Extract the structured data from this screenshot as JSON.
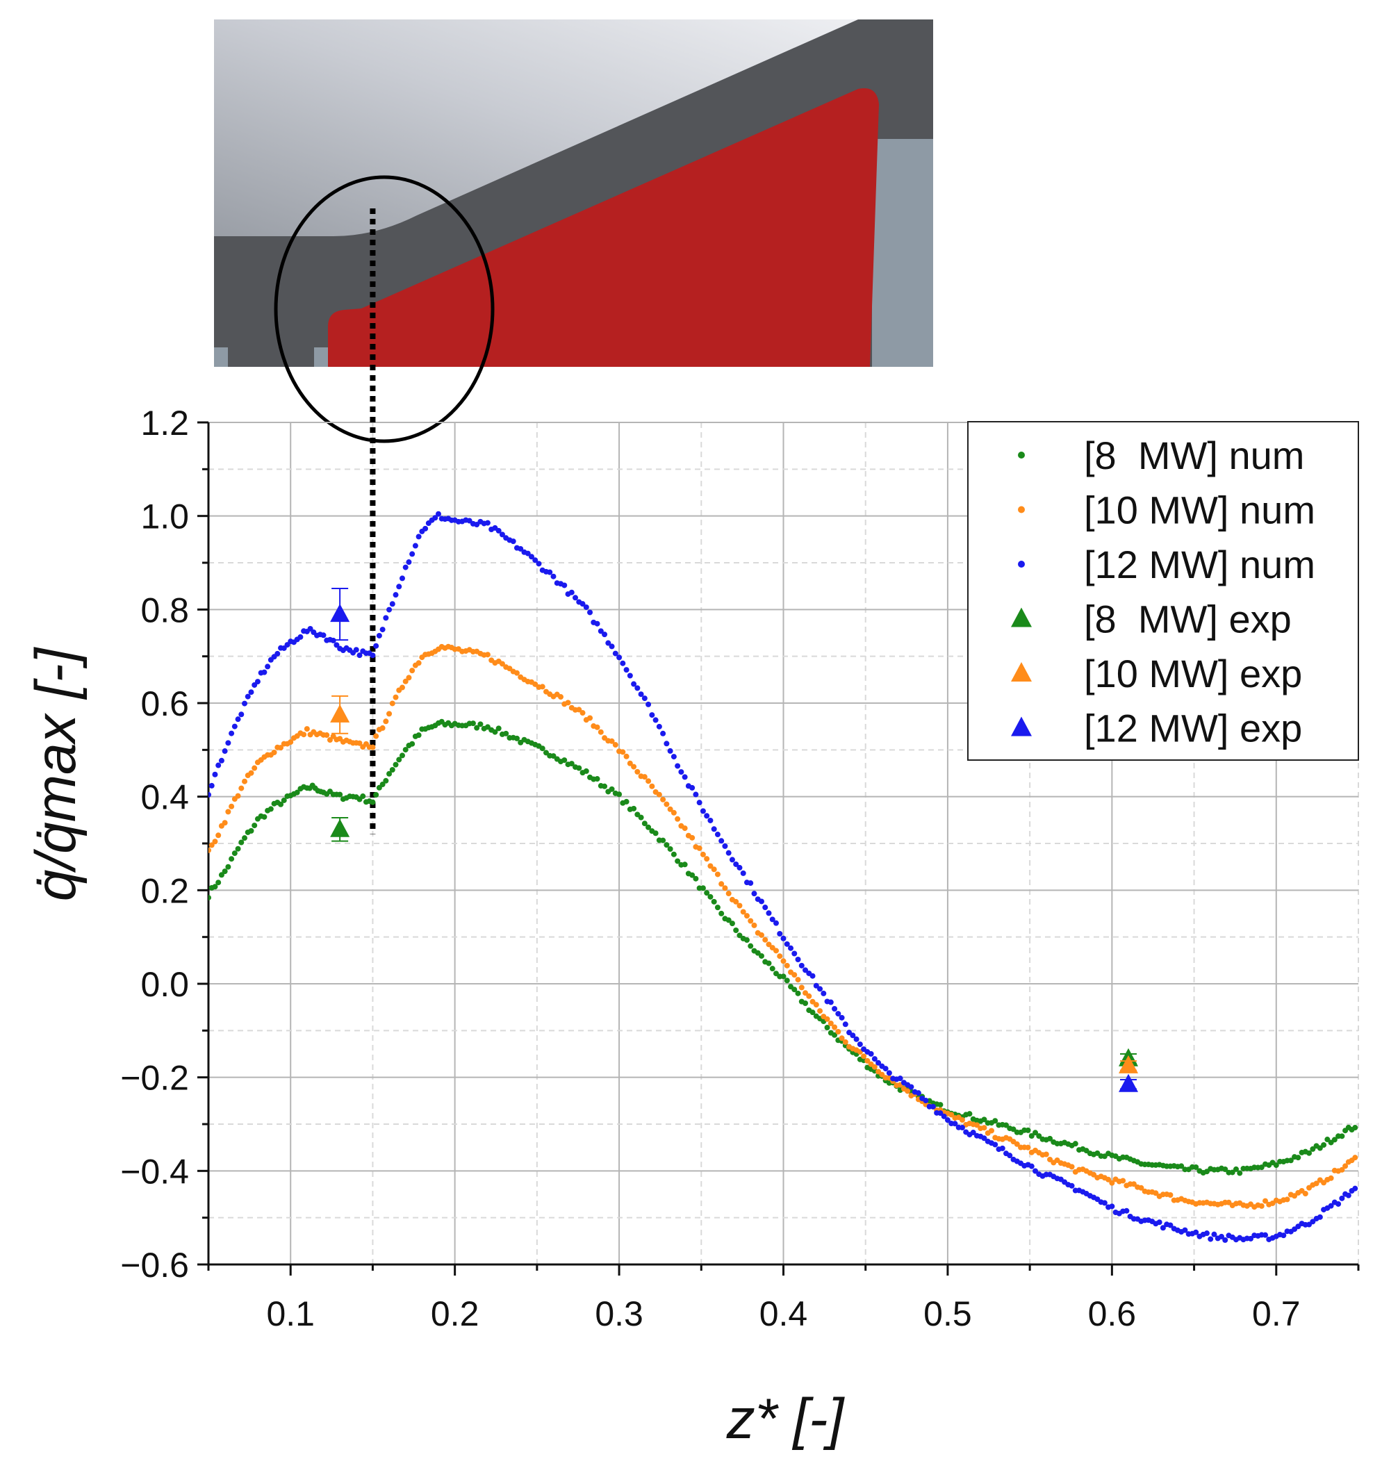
{
  "chart_data": {
    "type": "scatter",
    "xlabel": "z* [-]",
    "ylabel": "q̇/q̇max [-]",
    "xlim": [
      0.05,
      0.75
    ],
    "ylim": [
      -0.6,
      1.2
    ],
    "x_ticks": [
      "0.1",
      "0.2",
      "0.3",
      "0.4",
      "0.5",
      "0.6",
      "0.7"
    ],
    "y_ticks": [
      "1.2",
      "1.0",
      "0.8",
      "0.6",
      "0.4",
      "0.2",
      "0.0",
      "−0.2",
      "−0.4",
      "−0.6"
    ],
    "grid": true,
    "legend_position": "top-right",
    "marker_line_z": 0.15,
    "series": [
      {
        "name": "[8  MW] num",
        "kind": "num",
        "color": "#1a8a1a",
        "points": [
          [
            0.05,
            0.19
          ],
          [
            0.06,
            0.24
          ],
          [
            0.07,
            0.3
          ],
          [
            0.08,
            0.35
          ],
          [
            0.09,
            0.38
          ],
          [
            0.1,
            0.4
          ],
          [
            0.11,
            0.42
          ],
          [
            0.115,
            0.42
          ],
          [
            0.12,
            0.41
          ],
          [
            0.13,
            0.4
          ],
          [
            0.14,
            0.4
          ],
          [
            0.15,
            0.39
          ],
          [
            0.16,
            0.45
          ],
          [
            0.17,
            0.5
          ],
          [
            0.18,
            0.54
          ],
          [
            0.19,
            0.555
          ],
          [
            0.2,
            0.555
          ],
          [
            0.22,
            0.55
          ],
          [
            0.24,
            0.52
          ],
          [
            0.26,
            0.49
          ],
          [
            0.28,
            0.45
          ],
          [
            0.3,
            0.4
          ],
          [
            0.32,
            0.33
          ],
          [
            0.34,
            0.25
          ],
          [
            0.36,
            0.16
          ],
          [
            0.38,
            0.08
          ],
          [
            0.4,
            0.01
          ],
          [
            0.42,
            -0.07
          ],
          [
            0.44,
            -0.14
          ],
          [
            0.46,
            -0.2
          ],
          [
            0.48,
            -0.24
          ],
          [
            0.5,
            -0.27
          ],
          [
            0.52,
            -0.29
          ],
          [
            0.54,
            -0.31
          ],
          [
            0.56,
            -0.33
          ],
          [
            0.58,
            -0.35
          ],
          [
            0.6,
            -0.37
          ],
          [
            0.62,
            -0.385
          ],
          [
            0.64,
            -0.395
          ],
          [
            0.66,
            -0.4
          ],
          [
            0.68,
            -0.4
          ],
          [
            0.7,
            -0.385
          ],
          [
            0.72,
            -0.36
          ],
          [
            0.74,
            -0.32
          ],
          [
            0.75,
            -0.3
          ]
        ]
      },
      {
        "name": "[10 MW] num",
        "kind": "num",
        "color": "#ff8c1a",
        "points": [
          [
            0.05,
            0.28
          ],
          [
            0.06,
            0.35
          ],
          [
            0.07,
            0.42
          ],
          [
            0.08,
            0.47
          ],
          [
            0.09,
            0.5
          ],
          [
            0.1,
            0.52
          ],
          [
            0.11,
            0.54
          ],
          [
            0.12,
            0.53
          ],
          [
            0.13,
            0.52
          ],
          [
            0.14,
            0.51
          ],
          [
            0.15,
            0.51
          ],
          [
            0.16,
            0.58
          ],
          [
            0.17,
            0.65
          ],
          [
            0.18,
            0.7
          ],
          [
            0.19,
            0.72
          ],
          [
            0.2,
            0.715
          ],
          [
            0.22,
            0.7
          ],
          [
            0.24,
            0.66
          ],
          [
            0.26,
            0.62
          ],
          [
            0.28,
            0.57
          ],
          [
            0.3,
            0.5
          ],
          [
            0.32,
            0.42
          ],
          [
            0.34,
            0.33
          ],
          [
            0.36,
            0.23
          ],
          [
            0.38,
            0.13
          ],
          [
            0.4,
            0.05
          ],
          [
            0.42,
            -0.05
          ],
          [
            0.44,
            -0.13
          ],
          [
            0.46,
            -0.19
          ],
          [
            0.48,
            -0.24
          ],
          [
            0.5,
            -0.28
          ],
          [
            0.52,
            -0.31
          ],
          [
            0.54,
            -0.34
          ],
          [
            0.56,
            -0.37
          ],
          [
            0.58,
            -0.4
          ],
          [
            0.6,
            -0.42
          ],
          [
            0.62,
            -0.44
          ],
          [
            0.64,
            -0.46
          ],
          [
            0.66,
            -0.47
          ],
          [
            0.68,
            -0.475
          ],
          [
            0.7,
            -0.465
          ],
          [
            0.72,
            -0.44
          ],
          [
            0.74,
            -0.395
          ],
          [
            0.75,
            -0.37
          ]
        ]
      },
      {
        "name": "[12 MW] num",
        "kind": "num",
        "color": "#1a1aee",
        "points": [
          [
            0.05,
            0.41
          ],
          [
            0.06,
            0.5
          ],
          [
            0.07,
            0.58
          ],
          [
            0.08,
            0.65
          ],
          [
            0.09,
            0.7
          ],
          [
            0.1,
            0.73
          ],
          [
            0.11,
            0.755
          ],
          [
            0.12,
            0.745
          ],
          [
            0.13,
            0.72
          ],
          [
            0.14,
            0.71
          ],
          [
            0.15,
            0.7
          ],
          [
            0.16,
            0.8
          ],
          [
            0.17,
            0.89
          ],
          [
            0.18,
            0.97
          ],
          [
            0.19,
            1.0
          ],
          [
            0.2,
            0.99
          ],
          [
            0.22,
            0.98
          ],
          [
            0.24,
            0.93
          ],
          [
            0.26,
            0.87
          ],
          [
            0.28,
            0.8
          ],
          [
            0.3,
            0.7
          ],
          [
            0.32,
            0.58
          ],
          [
            0.34,
            0.44
          ],
          [
            0.36,
            0.32
          ],
          [
            0.38,
            0.21
          ],
          [
            0.4,
            0.1
          ],
          [
            0.42,
            0.0
          ],
          [
            0.44,
            -0.1
          ],
          [
            0.46,
            -0.18
          ],
          [
            0.48,
            -0.23
          ],
          [
            0.5,
            -0.29
          ],
          [
            0.52,
            -0.33
          ],
          [
            0.54,
            -0.37
          ],
          [
            0.56,
            -0.41
          ],
          [
            0.58,
            -0.44
          ],
          [
            0.6,
            -0.48
          ],
          [
            0.62,
            -0.505
          ],
          [
            0.64,
            -0.525
          ],
          [
            0.66,
            -0.54
          ],
          [
            0.68,
            -0.545
          ],
          [
            0.7,
            -0.54
          ],
          [
            0.72,
            -0.51
          ],
          [
            0.74,
            -0.46
          ],
          [
            0.75,
            -0.43
          ]
        ]
      },
      {
        "name": "[8  MW] exp",
        "kind": "exp",
        "color": "#1a8a1a",
        "points": [
          [
            0.13,
            0.33
          ],
          [
            0.61,
            -0.16
          ]
        ],
        "errors": [
          0.025,
          0.01
        ]
      },
      {
        "name": "[10 MW] exp",
        "kind": "exp",
        "color": "#ff8c1a",
        "points": [
          [
            0.13,
            0.575
          ],
          [
            0.61,
            -0.175
          ]
        ],
        "errors": [
          0.04,
          0.01
        ]
      },
      {
        "name": "[12 MW] exp",
        "kind": "exp",
        "color": "#1a1aee",
        "points": [
          [
            0.13,
            0.79
          ],
          [
            0.61,
            -0.215
          ]
        ],
        "errors": [
          0.055,
          0.01
        ]
      }
    ]
  }
}
